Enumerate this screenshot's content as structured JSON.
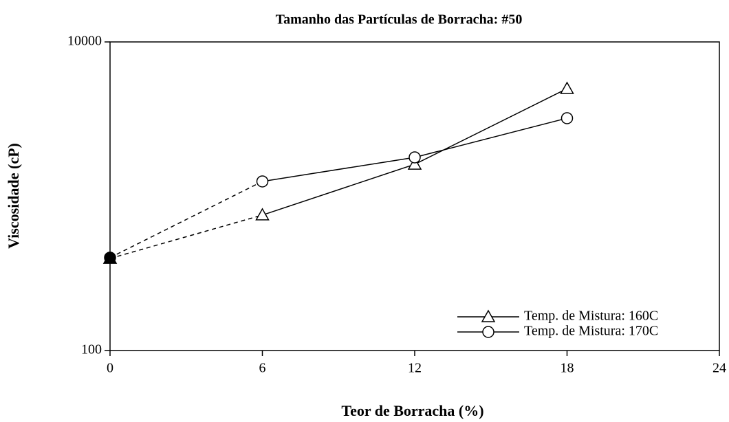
{
  "chart_data": {
    "type": "line",
    "title": "Tamanho das Partículas de Borracha: #50",
    "x_label": "Teor de Borracha (%)",
    "y_label": "Viscosidade (cP)",
    "x": [
      0,
      6,
      12,
      18
    ],
    "series": [
      {
        "name": "Temp. de Mistura: 160C",
        "color": "#000000",
        "marker": "triangle",
        "values": [
          395,
          755,
          1610,
          4980
        ],
        "dashed_segments": [
          0
        ],
        "filled_points": [
          0
        ]
      },
      {
        "name": "Temp. de Mistura: 170C",
        "color": "#000000",
        "marker": "circle",
        "values": [
          400,
          1247,
          1786,
          3205
        ],
        "dashed_segments": [
          0
        ],
        "filled_points": [
          0
        ]
      }
    ],
    "xlim": [
      0,
      24
    ],
    "xticks": [
      0,
      6,
      12,
      18,
      24
    ],
    "ylim": [
      100,
      10000
    ],
    "yticks": [
      100,
      10000
    ],
    "y_log": true,
    "legend": "lower right"
  }
}
